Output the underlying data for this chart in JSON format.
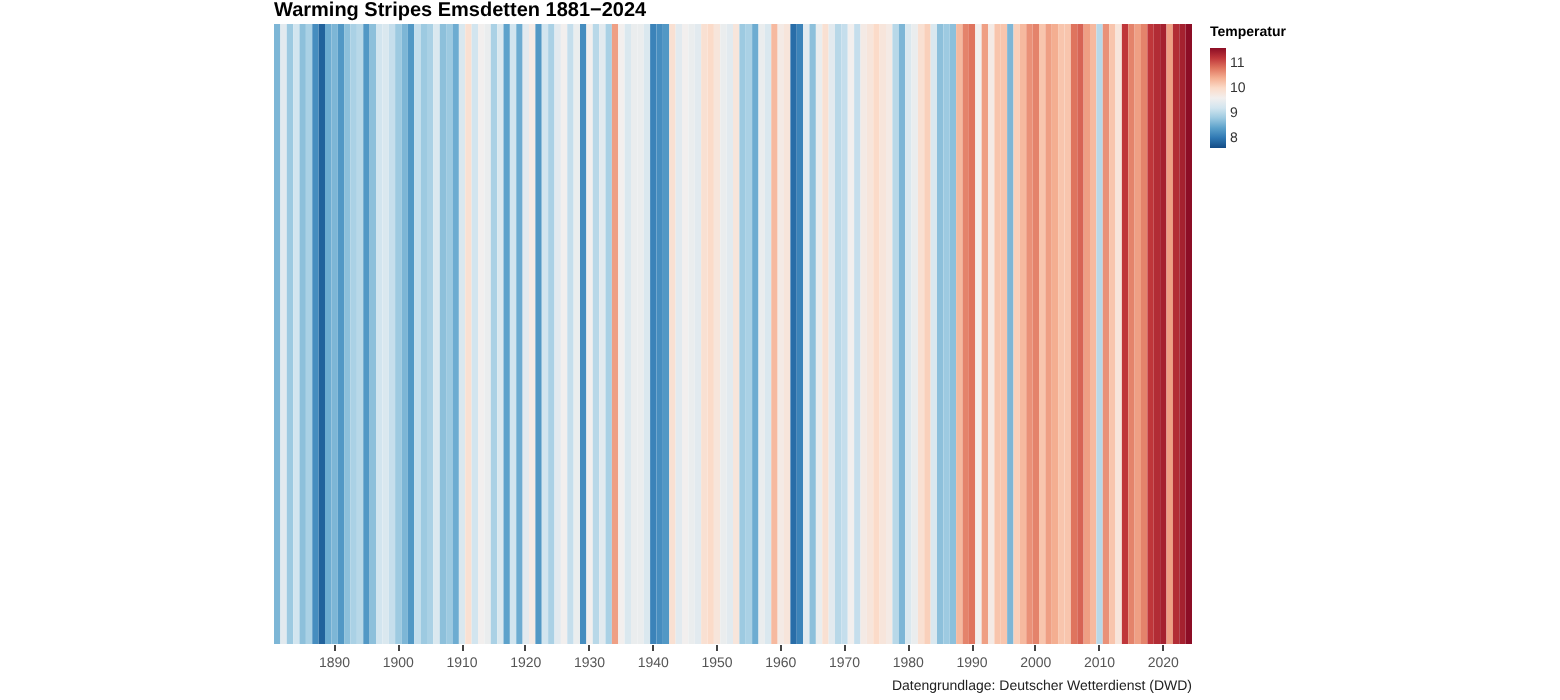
{
  "chart_data": {
    "type": "heatmap",
    "title": "Warming Stripes Emsdetten 1881−2024",
    "legend_title": "Temperatur",
    "annotations": [
      "Datengrundlage: Deutscher Wetterdienst (DWD)"
    ],
    "categories": [
      null,
      null,
      null,
      null,
      null,
      null,
      null,
      null,
      null,
      "1890",
      null,
      null,
      null,
      null,
      null,
      null,
      null,
      null,
      null,
      "1900",
      null,
      null,
      null,
      null,
      null,
      null,
      null,
      null,
      null,
      "1910",
      null,
      null,
      null,
      null,
      null,
      null,
      null,
      null,
      null,
      "1920",
      null,
      null,
      null,
      null,
      null,
      null,
      null,
      null,
      null,
      "1930",
      null,
      null,
      null,
      null,
      null,
      null,
      null,
      null,
      null,
      "1940",
      null,
      null,
      null,
      null,
      null,
      null,
      null,
      null,
      null,
      "1950",
      null,
      null,
      null,
      null,
      null,
      null,
      null,
      null,
      null,
      "1960",
      null,
      null,
      null,
      null,
      null,
      null,
      null,
      null,
      null,
      "1970",
      null,
      null,
      null,
      null,
      null,
      null,
      null,
      null,
      null,
      "1980",
      null,
      null,
      null,
      null,
      null,
      null,
      null,
      null,
      null,
      "1990",
      null,
      null,
      null,
      null,
      null,
      null,
      null,
      null,
      null,
      "2000",
      null,
      null,
      null,
      null,
      null,
      null,
      null,
      null,
      null,
      "2010",
      null,
      null,
      null,
      null,
      null,
      null,
      null,
      null,
      null,
      "2020",
      null,
      null,
      null,
      null
    ],
    "y_categories": [
      null
    ],
    "cells": [
      [
        8.6,
        9.4,
        8.8,
        9.2,
        8.7,
        8.9,
        8.2,
        7.8,
        8.5,
        8.6,
        8.3,
        8.7,
        8.9,
        9.0,
        8.3,
        8.7,
        9.2,
        9.3,
        9.1,
        8.8,
        8.6,
        8.3,
        9.1,
        8.8,
        8.9,
        9.3,
        8.7,
        8.8,
        8.5,
        9.3,
        9.9,
        9.2,
        9.6,
        9.5,
        8.9,
        9.3,
        8.4,
        9.2,
        8.5,
        9.4,
        9.7,
        8.3,
        9.2,
        8.9,
        9.4,
        9.6,
        9.1,
        9.5,
        8.2,
        9.6,
        9.0,
        9.4,
        8.9,
        10.5,
        9.6,
        9.3,
        9.5,
        9.5,
        9.3,
        8.1,
        8.2,
        8.3,
        9.9,
        9.4,
        9.6,
        9.5,
        9.4,
        9.9,
        10.0,
        9.8,
        9.5,
        9.4,
        9.8,
        8.8,
        8.9,
        8.5,
        9.5,
        9.3,
        10.3,
        9.7,
        9.8,
        7.9,
        8.1,
        9.4,
        8.7,
        9.5,
        9.9,
        9.4,
        9.0,
        9.1,
        9.6,
        9.1,
        9.7,
        9.8,
        10.0,
        9.8,
        9.7,
        9.0,
        8.6,
        9.3,
        9.5,
        9.9,
        10.1,
        9.3,
        8.7,
        8.8,
        8.7,
        10.3,
        10.7,
        10.8,
        9.6,
        10.5,
        9.7,
        10.2,
        10.2,
        8.6,
        10.1,
        10.3,
        10.6,
        10.7,
        10.2,
        10.5,
        10.4,
        10.2,
        10.2,
        10.8,
        10.9,
        10.5,
        10.3,
        9.0,
        10.6,
        10.2,
        9.8,
        11.2,
        10.7,
        10.5,
        10.7,
        11.2,
        11.3,
        11.4,
        10.5,
        11.3,
        11.4,
        11.6
      ]
    ],
    "clim": [
      7.6,
      11.6
    ],
    "cticks": [
      8,
      9,
      10,
      11
    ]
  }
}
